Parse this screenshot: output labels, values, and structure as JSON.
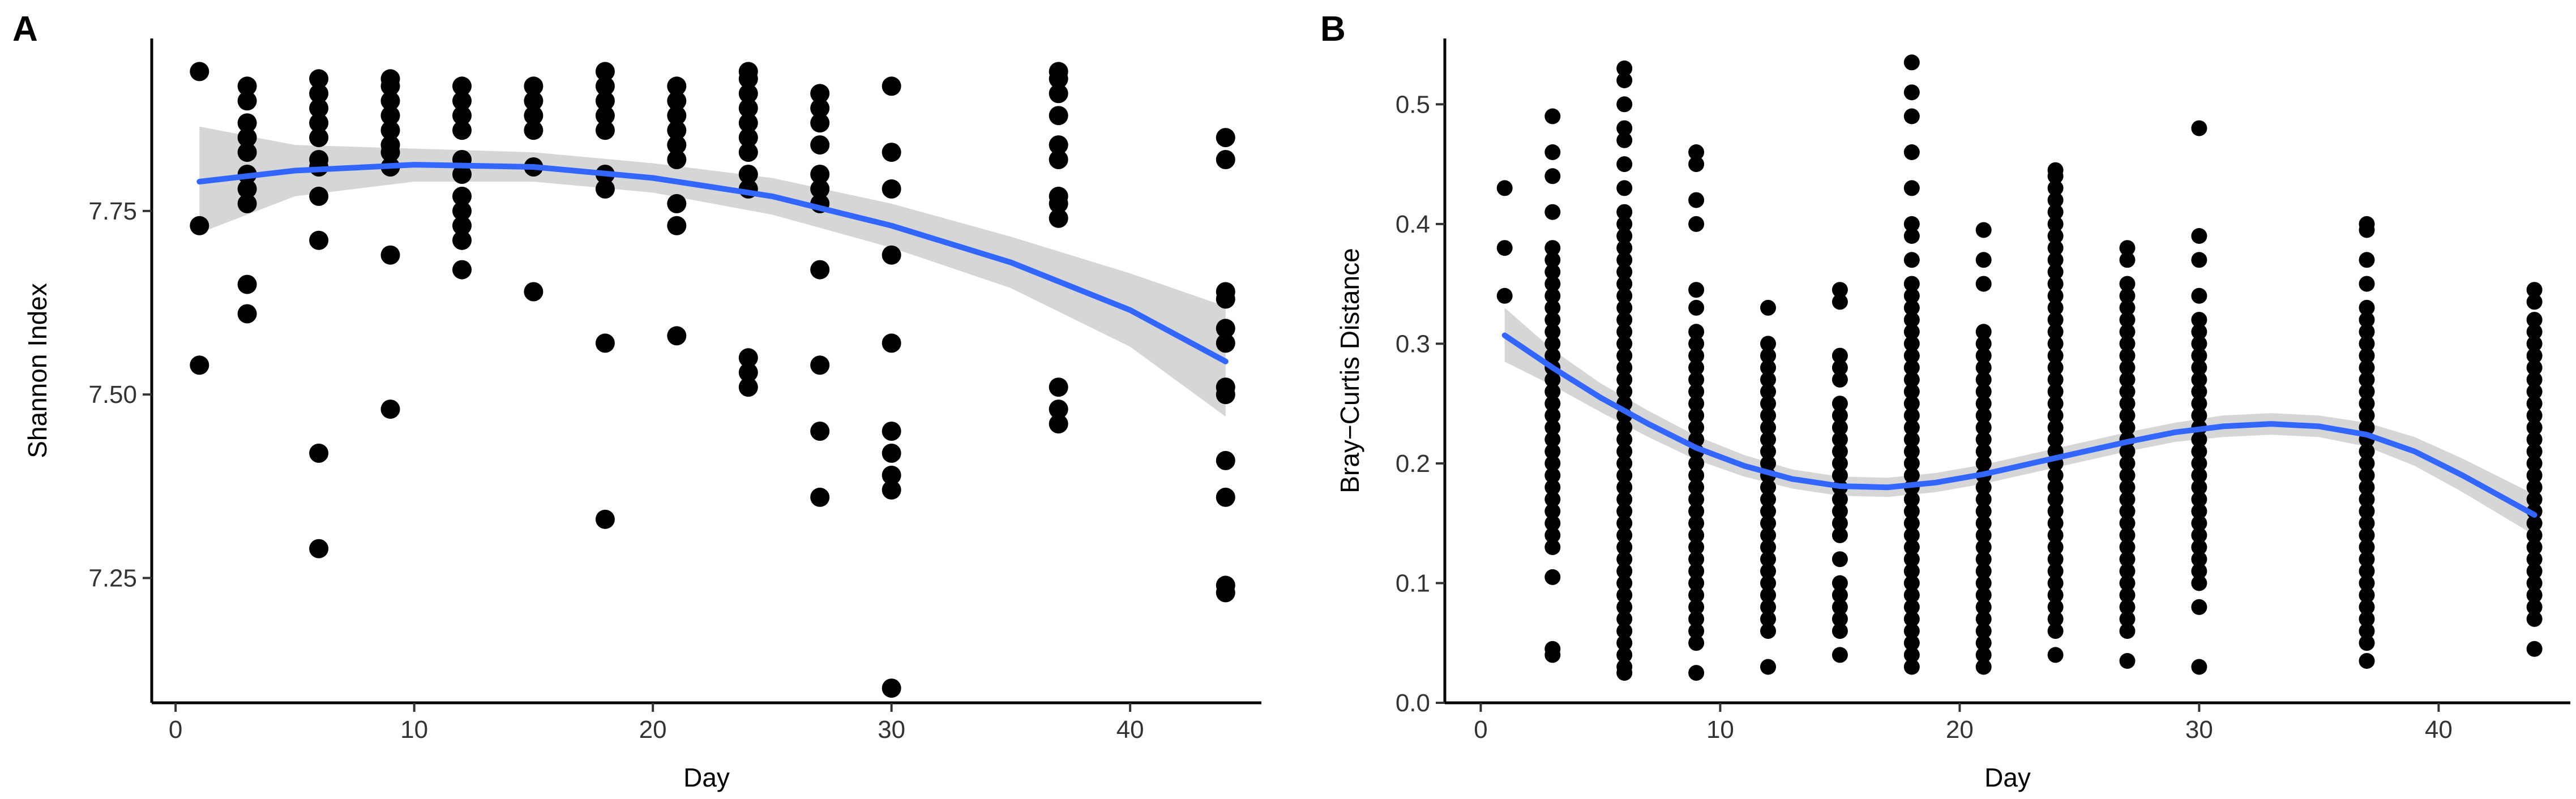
{
  "chart_data": [
    {
      "type": "scatter",
      "panel_label": "A",
      "title": "",
      "xlabel": "Day",
      "ylabel": "Shannon Index",
      "xlim": [
        -1,
        45.5
      ],
      "ylim": [
        7.08,
        7.985
      ],
      "xticks": [
        0,
        10,
        20,
        30,
        40
      ],
      "xtick_labels": [
        "0",
        "10",
        "20",
        "30",
        "40"
      ],
      "yticks": [
        7.25,
        7.5,
        7.75
      ],
      "ytick_labels": [
        "7.25",
        "7.50",
        "7.75"
      ],
      "grid": false,
      "colors": {
        "points": "#000000",
        "fit": "#3366FF",
        "band": "#999999"
      },
      "points": [
        {
          "day": 1,
          "values": [
            7.94,
            7.73,
            7.54
          ]
        },
        {
          "day": 3,
          "values": [
            7.92,
            7.9,
            7.87,
            7.85,
            7.83,
            7.8,
            7.78,
            7.76,
            7.65,
            7.61
          ]
        },
        {
          "day": 6,
          "values": [
            7.93,
            7.91,
            7.89,
            7.87,
            7.85,
            7.82,
            7.81,
            7.77,
            7.71,
            7.42,
            7.29
          ]
        },
        {
          "day": 9,
          "values": [
            7.93,
            7.92,
            7.9,
            7.88,
            7.86,
            7.84,
            7.83,
            7.81,
            7.69,
            7.48
          ]
        },
        {
          "day": 12,
          "values": [
            7.92,
            7.9,
            7.88,
            7.86,
            7.82,
            7.8,
            7.77,
            7.75,
            7.73,
            7.71,
            7.67
          ]
        },
        {
          "day": 15,
          "values": [
            7.92,
            7.9,
            7.88,
            7.86,
            7.81,
            7.64
          ]
        },
        {
          "day": 18,
          "values": [
            7.94,
            7.92,
            7.9,
            7.88,
            7.86,
            7.8,
            7.78,
            7.57,
            7.33
          ]
        },
        {
          "day": 21,
          "values": [
            7.92,
            7.9,
            7.88,
            7.86,
            7.84,
            7.82,
            7.76,
            7.73,
            7.58
          ]
        },
        {
          "day": 24,
          "values": [
            7.94,
            7.93,
            7.91,
            7.89,
            7.87,
            7.85,
            7.83,
            7.8,
            7.78,
            7.55,
            7.53,
            7.51
          ]
        },
        {
          "day": 27,
          "values": [
            7.91,
            7.89,
            7.87,
            7.84,
            7.8,
            7.78,
            7.76,
            7.67,
            7.54,
            7.45,
            7.36
          ]
        },
        {
          "day": 30,
          "values": [
            7.92,
            7.83,
            7.78,
            7.69,
            7.57,
            7.45,
            7.42,
            7.39,
            7.37,
            7.1
          ]
        },
        {
          "day": 37,
          "values": [
            7.94,
            7.93,
            7.91,
            7.88,
            7.84,
            7.82,
            7.77,
            7.76,
            7.74,
            7.51,
            7.48,
            7.46
          ]
        },
        {
          "day": 44,
          "values": [
            7.85,
            7.82,
            7.64,
            7.63,
            7.59,
            7.57,
            7.51,
            7.5,
            7.41,
            7.36,
            7.24,
            7.23
          ]
        }
      ],
      "smooth": {
        "x": [
          1,
          5,
          10,
          15,
          20,
          25,
          30,
          35,
          40,
          44
        ],
        "y": [
          7.79,
          7.805,
          7.813,
          7.81,
          7.795,
          7.77,
          7.73,
          7.68,
          7.615,
          7.545
        ],
        "se_lower": [
          7.72,
          7.77,
          7.79,
          7.79,
          7.775,
          7.745,
          7.7,
          7.645,
          7.565,
          7.47
        ],
        "se_upper": [
          7.865,
          7.84,
          7.835,
          7.83,
          7.815,
          7.795,
          7.76,
          7.715,
          7.665,
          7.62
        ]
      }
    },
    {
      "type": "scatter",
      "panel_label": "B",
      "title": "",
      "xlabel": "Day",
      "ylabel": "Bray−Curtis Distance",
      "xlim": [
        -1.5,
        45.5
      ],
      "ylim": [
        0,
        0.555
      ],
      "xticks": [
        0,
        10,
        20,
        30,
        40
      ],
      "xtick_labels": [
        "0",
        "10",
        "20",
        "30",
        "40"
      ],
      "yticks": [
        0.0,
        0.1,
        0.2,
        0.3,
        0.4,
        0.5
      ],
      "ytick_labels": [
        "0.0",
        "0.1",
        "0.2",
        "0.3",
        "0.4",
        "0.5"
      ],
      "grid": false,
      "colors": {
        "points": "#000000",
        "fit": "#3366FF",
        "band": "#999999"
      },
      "points": [
        {
          "day": 1,
          "values": [
            0.43,
            0.38,
            0.34
          ]
        },
        {
          "day": 3,
          "values": [
            0.49,
            0.46,
            0.44,
            0.41,
            0.38,
            0.37,
            0.36,
            0.35,
            0.34,
            0.33,
            0.32,
            0.31,
            0.3,
            0.29,
            0.28,
            0.27,
            0.26,
            0.25,
            0.24,
            0.23,
            0.22,
            0.21,
            0.2,
            0.19,
            0.18,
            0.17,
            0.16,
            0.15,
            0.14,
            0.13,
            0.105,
            0.045,
            0.04
          ]
        },
        {
          "day": 6,
          "values": [
            0.53,
            0.52,
            0.5,
            0.48,
            0.47,
            0.45,
            0.43,
            0.41,
            0.4,
            0.39,
            0.38,
            0.37,
            0.36,
            0.35,
            0.34,
            0.33,
            0.32,
            0.31,
            0.3,
            0.29,
            0.28,
            0.27,
            0.26,
            0.25,
            0.24,
            0.23,
            0.22,
            0.21,
            0.2,
            0.19,
            0.18,
            0.17,
            0.16,
            0.15,
            0.14,
            0.13,
            0.12,
            0.11,
            0.1,
            0.09,
            0.08,
            0.07,
            0.06,
            0.05,
            0.04,
            0.03,
            0.025
          ]
        },
        {
          "day": 9,
          "values": [
            0.46,
            0.45,
            0.42,
            0.4,
            0.345,
            0.33,
            0.31,
            0.3,
            0.29,
            0.28,
            0.27,
            0.26,
            0.25,
            0.24,
            0.23,
            0.22,
            0.21,
            0.2,
            0.19,
            0.18,
            0.17,
            0.16,
            0.15,
            0.14,
            0.13,
            0.12,
            0.11,
            0.1,
            0.09,
            0.08,
            0.07,
            0.06,
            0.05,
            0.025
          ]
        },
        {
          "day": 12,
          "values": [
            0.33,
            0.3,
            0.29,
            0.28,
            0.27,
            0.26,
            0.25,
            0.24,
            0.23,
            0.22,
            0.21,
            0.2,
            0.19,
            0.18,
            0.17,
            0.16,
            0.15,
            0.14,
            0.13,
            0.12,
            0.11,
            0.1,
            0.09,
            0.08,
            0.07,
            0.06,
            0.03
          ]
        },
        {
          "day": 15,
          "values": [
            0.345,
            0.335,
            0.29,
            0.28,
            0.27,
            0.25,
            0.24,
            0.23,
            0.22,
            0.21,
            0.2,
            0.19,
            0.18,
            0.17,
            0.16,
            0.15,
            0.14,
            0.12,
            0.1,
            0.09,
            0.08,
            0.07,
            0.06,
            0.04
          ]
        },
        {
          "day": 18,
          "values": [
            0.535,
            0.51,
            0.49,
            0.46,
            0.43,
            0.4,
            0.39,
            0.37,
            0.35,
            0.34,
            0.33,
            0.32,
            0.31,
            0.3,
            0.29,
            0.28,
            0.27,
            0.26,
            0.25,
            0.24,
            0.23,
            0.22,
            0.21,
            0.2,
            0.19,
            0.18,
            0.17,
            0.16,
            0.15,
            0.14,
            0.13,
            0.12,
            0.11,
            0.1,
            0.09,
            0.08,
            0.07,
            0.06,
            0.05,
            0.04,
            0.03
          ]
        },
        {
          "day": 21,
          "values": [
            0.395,
            0.37,
            0.35,
            0.31,
            0.3,
            0.29,
            0.28,
            0.27,
            0.26,
            0.25,
            0.24,
            0.23,
            0.22,
            0.21,
            0.2,
            0.19,
            0.18,
            0.17,
            0.16,
            0.15,
            0.14,
            0.13,
            0.12,
            0.11,
            0.1,
            0.09,
            0.08,
            0.07,
            0.06,
            0.05,
            0.04,
            0.03
          ]
        },
        {
          "day": 24,
          "values": [
            0.445,
            0.44,
            0.43,
            0.42,
            0.41,
            0.4,
            0.39,
            0.38,
            0.37,
            0.36,
            0.35,
            0.34,
            0.33,
            0.32,
            0.31,
            0.3,
            0.29,
            0.28,
            0.27,
            0.26,
            0.25,
            0.24,
            0.23,
            0.22,
            0.21,
            0.2,
            0.19,
            0.18,
            0.17,
            0.16,
            0.15,
            0.14,
            0.13,
            0.12,
            0.11,
            0.1,
            0.09,
            0.08,
            0.07,
            0.06,
            0.04
          ]
        },
        {
          "day": 27,
          "values": [
            0.38,
            0.37,
            0.35,
            0.34,
            0.33,
            0.32,
            0.31,
            0.3,
            0.29,
            0.28,
            0.27,
            0.26,
            0.25,
            0.24,
            0.23,
            0.22,
            0.21,
            0.2,
            0.19,
            0.18,
            0.17,
            0.16,
            0.15,
            0.14,
            0.13,
            0.12,
            0.11,
            0.1,
            0.09,
            0.08,
            0.07,
            0.06,
            0.035
          ]
        },
        {
          "day": 30,
          "values": [
            0.48,
            0.39,
            0.37,
            0.34,
            0.32,
            0.31,
            0.3,
            0.29,
            0.28,
            0.27,
            0.26,
            0.25,
            0.24,
            0.23,
            0.22,
            0.21,
            0.2,
            0.19,
            0.18,
            0.17,
            0.16,
            0.15,
            0.14,
            0.13,
            0.12,
            0.11,
            0.1,
            0.08,
            0.03
          ]
        },
        {
          "day": 37,
          "values": [
            0.4,
            0.395,
            0.37,
            0.35,
            0.33,
            0.32,
            0.31,
            0.3,
            0.29,
            0.28,
            0.27,
            0.26,
            0.25,
            0.24,
            0.23,
            0.22,
            0.21,
            0.2,
            0.19,
            0.18,
            0.17,
            0.16,
            0.15,
            0.14,
            0.13,
            0.12,
            0.11,
            0.1,
            0.09,
            0.08,
            0.07,
            0.06,
            0.05,
            0.035
          ]
        },
        {
          "day": 44,
          "values": [
            0.345,
            0.335,
            0.32,
            0.31,
            0.3,
            0.29,
            0.28,
            0.27,
            0.26,
            0.25,
            0.24,
            0.23,
            0.22,
            0.21,
            0.2,
            0.19,
            0.18,
            0.17,
            0.16,
            0.15,
            0.14,
            0.13,
            0.12,
            0.11,
            0.1,
            0.09,
            0.08,
            0.07,
            0.045
          ]
        }
      ],
      "smooth": {
        "x": [
          1,
          3,
          5,
          7,
          9,
          11,
          13,
          15,
          17,
          19,
          21,
          23,
          25,
          27,
          29,
          31,
          33,
          35,
          37,
          39,
          41,
          43,
          44
        ],
        "y": [
          0.307,
          0.28,
          0.255,
          0.233,
          0.213,
          0.198,
          0.187,
          0.181,
          0.18,
          0.184,
          0.191,
          0.2,
          0.209,
          0.218,
          0.226,
          0.231,
          0.233,
          0.231,
          0.224,
          0.21,
          0.19,
          0.168,
          0.157
        ],
        "se_lower": [
          0.285,
          0.265,
          0.243,
          0.222,
          0.203,
          0.189,
          0.179,
          0.173,
          0.172,
          0.176,
          0.183,
          0.192,
          0.201,
          0.21,
          0.218,
          0.222,
          0.224,
          0.222,
          0.214,
          0.198,
          0.176,
          0.152,
          0.14
        ],
        "se_upper": [
          0.33,
          0.295,
          0.267,
          0.244,
          0.223,
          0.207,
          0.195,
          0.189,
          0.188,
          0.192,
          0.199,
          0.208,
          0.217,
          0.226,
          0.234,
          0.24,
          0.242,
          0.24,
          0.234,
          0.222,
          0.204,
          0.184,
          0.174
        ]
      }
    }
  ]
}
